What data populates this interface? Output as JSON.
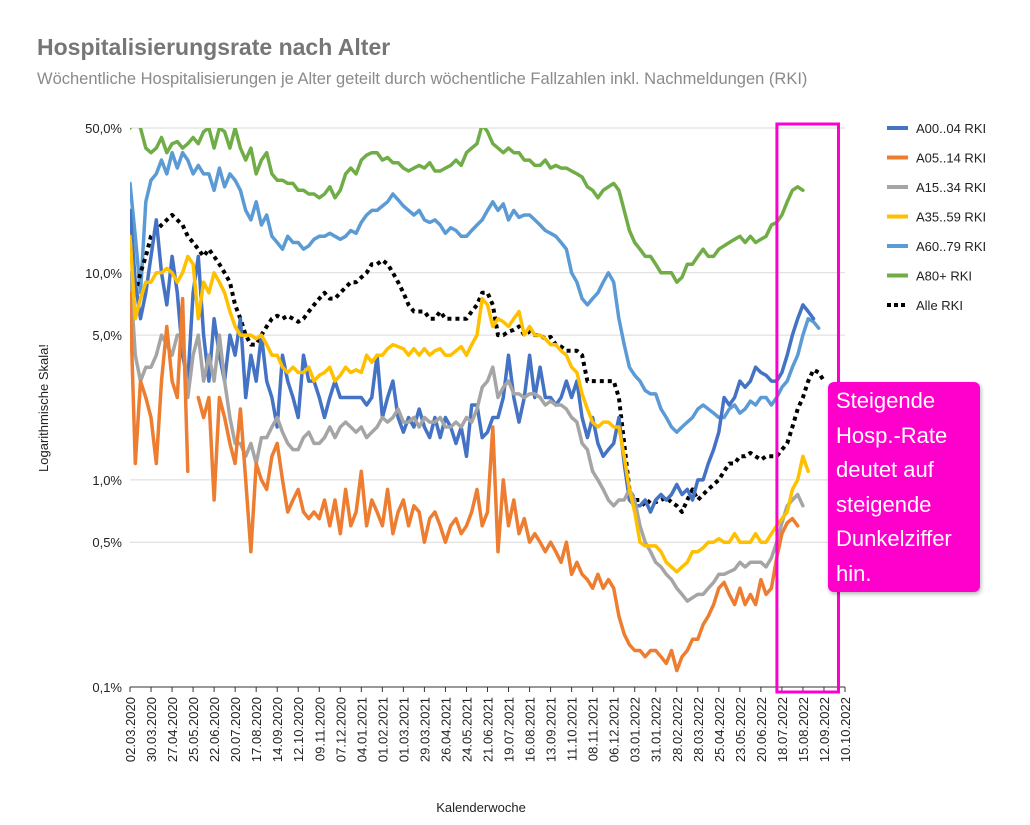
{
  "title": "Hospitalisierungsrate nach Alter",
  "subtitle": "Wöchentliche Hospitalisierungen je Alter geteilt durch wöchentliche Fallzahlen inkl. Nachmeldungen (RKI)",
  "annotation_text": "Steigende\nHosp.-Rate\ndeutet auf\nsteigende\nDunkelziffer\nhin.",
  "colors": {
    "highlight_box": "#ff00cc",
    "gridline": "#d9d9d9"
  },
  "chart_data": {
    "type": "line",
    "title": "Hospitalisierungsrate nach Alter",
    "xlabel": "Kalenderwoche",
    "ylabel": "Logarithmische Skala!",
    "yscale": "log",
    "ylim": [
      0.1,
      50
    ],
    "yticks": [
      {
        "value": 50,
        "label": "50,0%"
      },
      {
        "value": 10,
        "label": "10,0%"
      },
      {
        "value": 5,
        "label": "5,0%"
      },
      {
        "value": 1,
        "label": "1,0%"
      },
      {
        "value": 0.5,
        "label": "0,5%"
      },
      {
        "value": 0.1,
        "label": "0,1%"
      }
    ],
    "x_tick_labels": [
      "02.03.2020",
      "30.03.2020",
      "27.04.2020",
      "25.05.2020",
      "22.06.2020",
      "20.07.2020",
      "17.08.2020",
      "14.09.2020",
      "12.10.2020",
      "09.11.2020",
      "07.12.2020",
      "04.01.2021",
      "01.02.2021",
      "01.03.2021",
      "29.03.2021",
      "26.04.2021",
      "24.05.2021",
      "21.06.2021",
      "19.07.2021",
      "16.08.2021",
      "13.09.2021",
      "11.10.2021",
      "08.11.2021",
      "06.12.2021",
      "03.01.2022",
      "31.01.2022",
      "28.02.2022",
      "28.03.2022",
      "25.04.2022",
      "23.05.2022",
      "20.06.2022",
      "18.07.2022",
      "15.08.2022",
      "12.09.2022",
      "10.10.2022"
    ],
    "legend_position": "right",
    "grid": true,
    "highlight_range_weeks": [
      124,
      134
    ],
    "series": [
      {
        "name": "A00..04 RKI",
        "color": "#4472c4",
        "dashed": false,
        "values": [
          20,
          9,
          6,
          8,
          12,
          18,
          10,
          7,
          12,
          8,
          4,
          3,
          8,
          12,
          5,
          3,
          6,
          4,
          3,
          5,
          4,
          6,
          2.5,
          4,
          3,
          5,
          3,
          2.5,
          1.8,
          4,
          3,
          2.5,
          2,
          4,
          3,
          3,
          2.5,
          2,
          2.5,
          3,
          2.5,
          2.5,
          2.5,
          2.5,
          2.5,
          2.3,
          2.5,
          4,
          2,
          2.5,
          3,
          2,
          1.7,
          2,
          1.8,
          2.2,
          1.8,
          1.6,
          2,
          1.6,
          2,
          1.8,
          1.5,
          1.8,
          1.3,
          2.3,
          2.3,
          1.6,
          1.7,
          2,
          2,
          2.5,
          4,
          2.5,
          1.9,
          2.5,
          4,
          2.5,
          3.5,
          2.5,
          2.5,
          2.3,
          2.5,
          3,
          2.5,
          3,
          2,
          1.6,
          2,
          1.5,
          1.3,
          1.4,
          1.5,
          2,
          1.2,
          0.8,
          0.75,
          0.75,
          0.8,
          0.7,
          0.8,
          0.85,
          0.8,
          0.85,
          0.95,
          0.85,
          0.9,
          0.8,
          1,
          1,
          1.2,
          1.4,
          1.7,
          2.5,
          2.3,
          2.5,
          3,
          2.8,
          3,
          3.5,
          3.3,
          3.2,
          3,
          3,
          3.3,
          4,
          5,
          6,
          7,
          6.5,
          6
        ]
      },
      {
        "name": "A05..14 RKI",
        "color": "#ed7d31",
        "dashed": false,
        "values": [
          8,
          1.2,
          3,
          2.5,
          2,
          1.2,
          3,
          5.5,
          3,
          2.5,
          7.5,
          1.1,
          null,
          2.5,
          2,
          2.5,
          0.8,
          2.5,
          2,
          1.5,
          1.2,
          2.2,
          1,
          0.45,
          1.2,
          1,
          0.9,
          1.3,
          1.5,
          1,
          0.7,
          0.8,
          0.9,
          0.7,
          0.65,
          0.7,
          0.65,
          0.8,
          0.6,
          0.8,
          0.55,
          0.9,
          0.6,
          0.7,
          1.1,
          0.6,
          0.8,
          0.7,
          0.6,
          0.9,
          0.55,
          0.7,
          0.8,
          0.6,
          0.75,
          0.7,
          0.5,
          0.65,
          0.7,
          0.6,
          0.5,
          0.6,
          0.65,
          0.55,
          0.6,
          0.7,
          0.9,
          0.6,
          0.7,
          1.8,
          0.45,
          1,
          0.6,
          0.8,
          0.55,
          0.65,
          0.5,
          0.55,
          0.5,
          0.45,
          0.5,
          0.45,
          0.4,
          0.5,
          0.35,
          0.4,
          0.35,
          0.33,
          0.3,
          0.35,
          0.3,
          0.33,
          0.3,
          0.22,
          0.18,
          0.16,
          0.15,
          0.15,
          0.14,
          0.15,
          0.15,
          0.14,
          0.13,
          0.15,
          0.12,
          0.14,
          0.15,
          0.17,
          0.17,
          0.2,
          0.22,
          0.25,
          0.3,
          0.32,
          0.28,
          0.25,
          0.3,
          0.25,
          0.28,
          0.25,
          0.33,
          0.28,
          0.3,
          0.42,
          0.55,
          0.62,
          0.65,
          0.6
        ]
      },
      {
        "name": "A15..34 RKI",
        "color": "#a5a5a5",
        "dashed": false,
        "values": [
          10,
          4,
          3,
          3.5,
          3.5,
          4,
          5,
          4.5,
          4,
          5,
          5,
          2.5,
          4,
          5,
          3,
          4,
          3,
          5,
          3,
          2,
          1.5,
          1.5,
          1.3,
          1.5,
          1.2,
          1.6,
          1.6,
          1.8,
          2,
          1.7,
          1.5,
          1.4,
          1.4,
          1.6,
          1.7,
          1.5,
          1.5,
          1.6,
          1.8,
          1.6,
          1.8,
          1.9,
          1.8,
          1.7,
          1.8,
          1.6,
          1.7,
          1.8,
          2,
          1.9,
          2,
          2.2,
          1.9,
          1.9,
          2,
          1.8,
          2,
          1.9,
          1.9,
          2,
          1.8,
          1.8,
          1.9,
          1.8,
          2,
          1.9,
          2.2,
          2.8,
          3,
          3.5,
          2.5,
          2.8,
          3,
          2.6,
          2.6,
          2.5,
          2.6,
          2.6,
          2.5,
          2.3,
          2.4,
          2.3,
          2.3,
          2.2,
          2,
          1.9,
          1.5,
          1.4,
          1.1,
          1,
          0.9,
          0.8,
          0.75,
          0.8,
          0.8,
          0.9,
          0.8,
          0.6,
          0.5,
          0.45,
          0.4,
          0.38,
          0.35,
          0.33,
          0.3,
          0.28,
          0.26,
          0.27,
          0.28,
          0.28,
          0.3,
          0.32,
          0.35,
          0.35,
          0.36,
          0.37,
          0.4,
          0.38,
          0.4,
          0.4,
          0.4,
          0.38,
          0.42,
          0.5,
          0.62,
          0.75,
          0.8,
          0.85,
          0.75
        ]
      },
      {
        "name": "A35..59 RKI",
        "color": "#ffc000",
        "dashed": false,
        "values": [
          15,
          6,
          7.5,
          9,
          9,
          10,
          10,
          10.5,
          10,
          9,
          10,
          12,
          11,
          6,
          9,
          8,
          10,
          9,
          8,
          6.5,
          5.5,
          5,
          5,
          5,
          4.8,
          5,
          4.5,
          4,
          4,
          3.5,
          3.3,
          3.5,
          3.3,
          3.3,
          3.5,
          3,
          3.2,
          3.3,
          3.5,
          3,
          3.2,
          3.5,
          3.3,
          3.4,
          3.3,
          4,
          3.7,
          4,
          4,
          4.3,
          4.5,
          4.4,
          4.3,
          4,
          4.3,
          4,
          4.3,
          4,
          4.2,
          4.3,
          4,
          4,
          4.2,
          4.4,
          4,
          4.5,
          5,
          7.5,
          7,
          5.5,
          6,
          5.8,
          5.5,
          6,
          6.5,
          5,
          5.5,
          5,
          5,
          4.8,
          4.5,
          4.5,
          4.2,
          4,
          3.5,
          3.3,
          2.6,
          2.2,
          1.9,
          1.8,
          1.9,
          1.9,
          1.8,
          1.8,
          1.3,
          0.9,
          0.7,
          0.5,
          0.48,
          0.48,
          0.48,
          0.45,
          0.4,
          0.38,
          0.36,
          0.38,
          0.4,
          0.45,
          0.45,
          0.47,
          0.5,
          0.5,
          0.52,
          0.5,
          0.5,
          0.55,
          0.5,
          0.5,
          0.5,
          0.55,
          0.5,
          0.5,
          0.55,
          0.6,
          0.65,
          0.7,
          0.9,
          1,
          1.3,
          1.1
        ]
      },
      {
        "name": "A60..79 RKI",
        "color": "#5b9bd5",
        "dashed": false,
        "values": [
          27,
          15,
          8,
          22,
          28,
          30,
          35,
          30,
          38,
          32,
          38,
          35,
          30,
          33,
          30,
          30,
          25,
          32,
          26,
          30,
          28,
          25,
          20,
          18,
          22,
          17,
          19,
          15,
          14,
          13,
          15,
          14,
          14,
          13,
          13.5,
          14.5,
          15,
          15,
          15.5,
          15,
          14.5,
          15,
          16,
          15.5,
          17.5,
          19,
          20,
          20,
          21,
          22,
          24,
          22.5,
          21,
          20,
          19,
          20,
          18,
          17.5,
          18,
          17,
          15.5,
          16.5,
          16,
          15,
          15,
          16,
          17,
          18,
          20,
          22,
          20,
          21.5,
          18,
          20,
          18.5,
          19,
          19,
          18,
          17,
          16,
          15.5,
          15,
          14,
          13,
          10,
          9,
          7.5,
          7,
          7.5,
          8,
          9,
          10,
          9,
          6,
          4.5,
          3.5,
          3.2,
          3,
          2.7,
          2.6,
          2.6,
          2.2,
          2,
          1.8,
          1.7,
          1.8,
          1.9,
          2,
          2.2,
          2.3,
          2.2,
          2.1,
          2,
          2,
          2.2,
          2.3,
          2.1,
          2.2,
          2.4,
          2.3,
          2.5,
          2.5,
          2.3,
          2.5,
          2.8,
          3,
          3.5,
          4,
          5,
          6,
          5.8,
          5.4
        ]
      },
      {
        "name": "A80+ RKI",
        "color": "#70ad47",
        "dashed": false,
        "values": [
          50,
          55,
          50,
          40,
          38,
          40,
          45,
          38,
          42,
          43,
          40,
          42,
          45,
          42,
          48,
          50,
          40,
          50,
          48,
          40,
          50,
          40,
          35,
          40,
          30,
          35,
          38,
          30,
          28,
          28,
          27,
          27,
          25,
          25,
          24,
          24,
          23,
          24,
          26,
          23,
          25,
          30,
          32,
          30,
          35,
          37,
          38,
          38,
          35,
          36,
          34,
          34,
          32,
          31,
          32,
          33,
          32,
          34,
          31,
          31,
          32,
          33,
          35,
          33,
          38,
          40,
          42,
          52,
          48,
          42,
          40,
          38,
          40,
          38,
          38,
          35,
          35,
          33,
          33,
          35,
          32,
          33,
          32,
          32,
          31,
          30,
          29,
          26,
          25,
          23,
          25,
          26,
          27,
          25,
          20,
          16,
          14,
          13,
          12,
          12,
          11,
          10,
          10,
          10,
          9,
          9.5,
          11,
          11,
          12,
          13,
          12,
          12,
          13,
          13.5,
          14,
          14.5,
          15,
          14,
          15,
          14,
          14.5,
          15,
          17,
          17.5,
          19,
          22,
          25,
          26,
          25
        ]
      },
      {
        "name": "Alle RKI",
        "color": "#000000",
        "dashed": true,
        "values": [
          15,
          8,
          10,
          12,
          15,
          16,
          17,
          18,
          19,
          18,
          17,
          15,
          14,
          13,
          12,
          13,
          12,
          11,
          10,
          9,
          7,
          6,
          5,
          4.5,
          4.5,
          5,
          5.5,
          6,
          6.2,
          6,
          6.2,
          6,
          5.8,
          6,
          6.5,
          7,
          7.5,
          8,
          7.5,
          7.5,
          8,
          8.5,
          9,
          9,
          9.5,
          10,
          11,
          11,
          11.5,
          11,
          10,
          9,
          8,
          7,
          6.5,
          6.5,
          6.5,
          6,
          6,
          6.5,
          6,
          6,
          6,
          6,
          6,
          6.5,
          7,
          8,
          8,
          7,
          5,
          5,
          5.2,
          5.3,
          5.5,
          5,
          5.2,
          5,
          5,
          4.8,
          4.9,
          4.5,
          4.4,
          4.2,
          4.2,
          4.2,
          4,
          3,
          3,
          3,
          3,
          3,
          3,
          2.5,
          1.5,
          0.9,
          0.8,
          0.8,
          0.75,
          0.8,
          0.78,
          0.8,
          0.82,
          0.78,
          0.75,
          0.7,
          0.8,
          0.9,
          0.8,
          0.85,
          0.9,
          0.95,
          1,
          1.1,
          1.2,
          1.2,
          1.3,
          1.3,
          1.35,
          1.3,
          1.25,
          1.3,
          1.3,
          1.3,
          1.4,
          1.5,
          1.8,
          2.2,
          2.5,
          3,
          3.4,
          3.3,
          3
        ]
      }
    ]
  }
}
